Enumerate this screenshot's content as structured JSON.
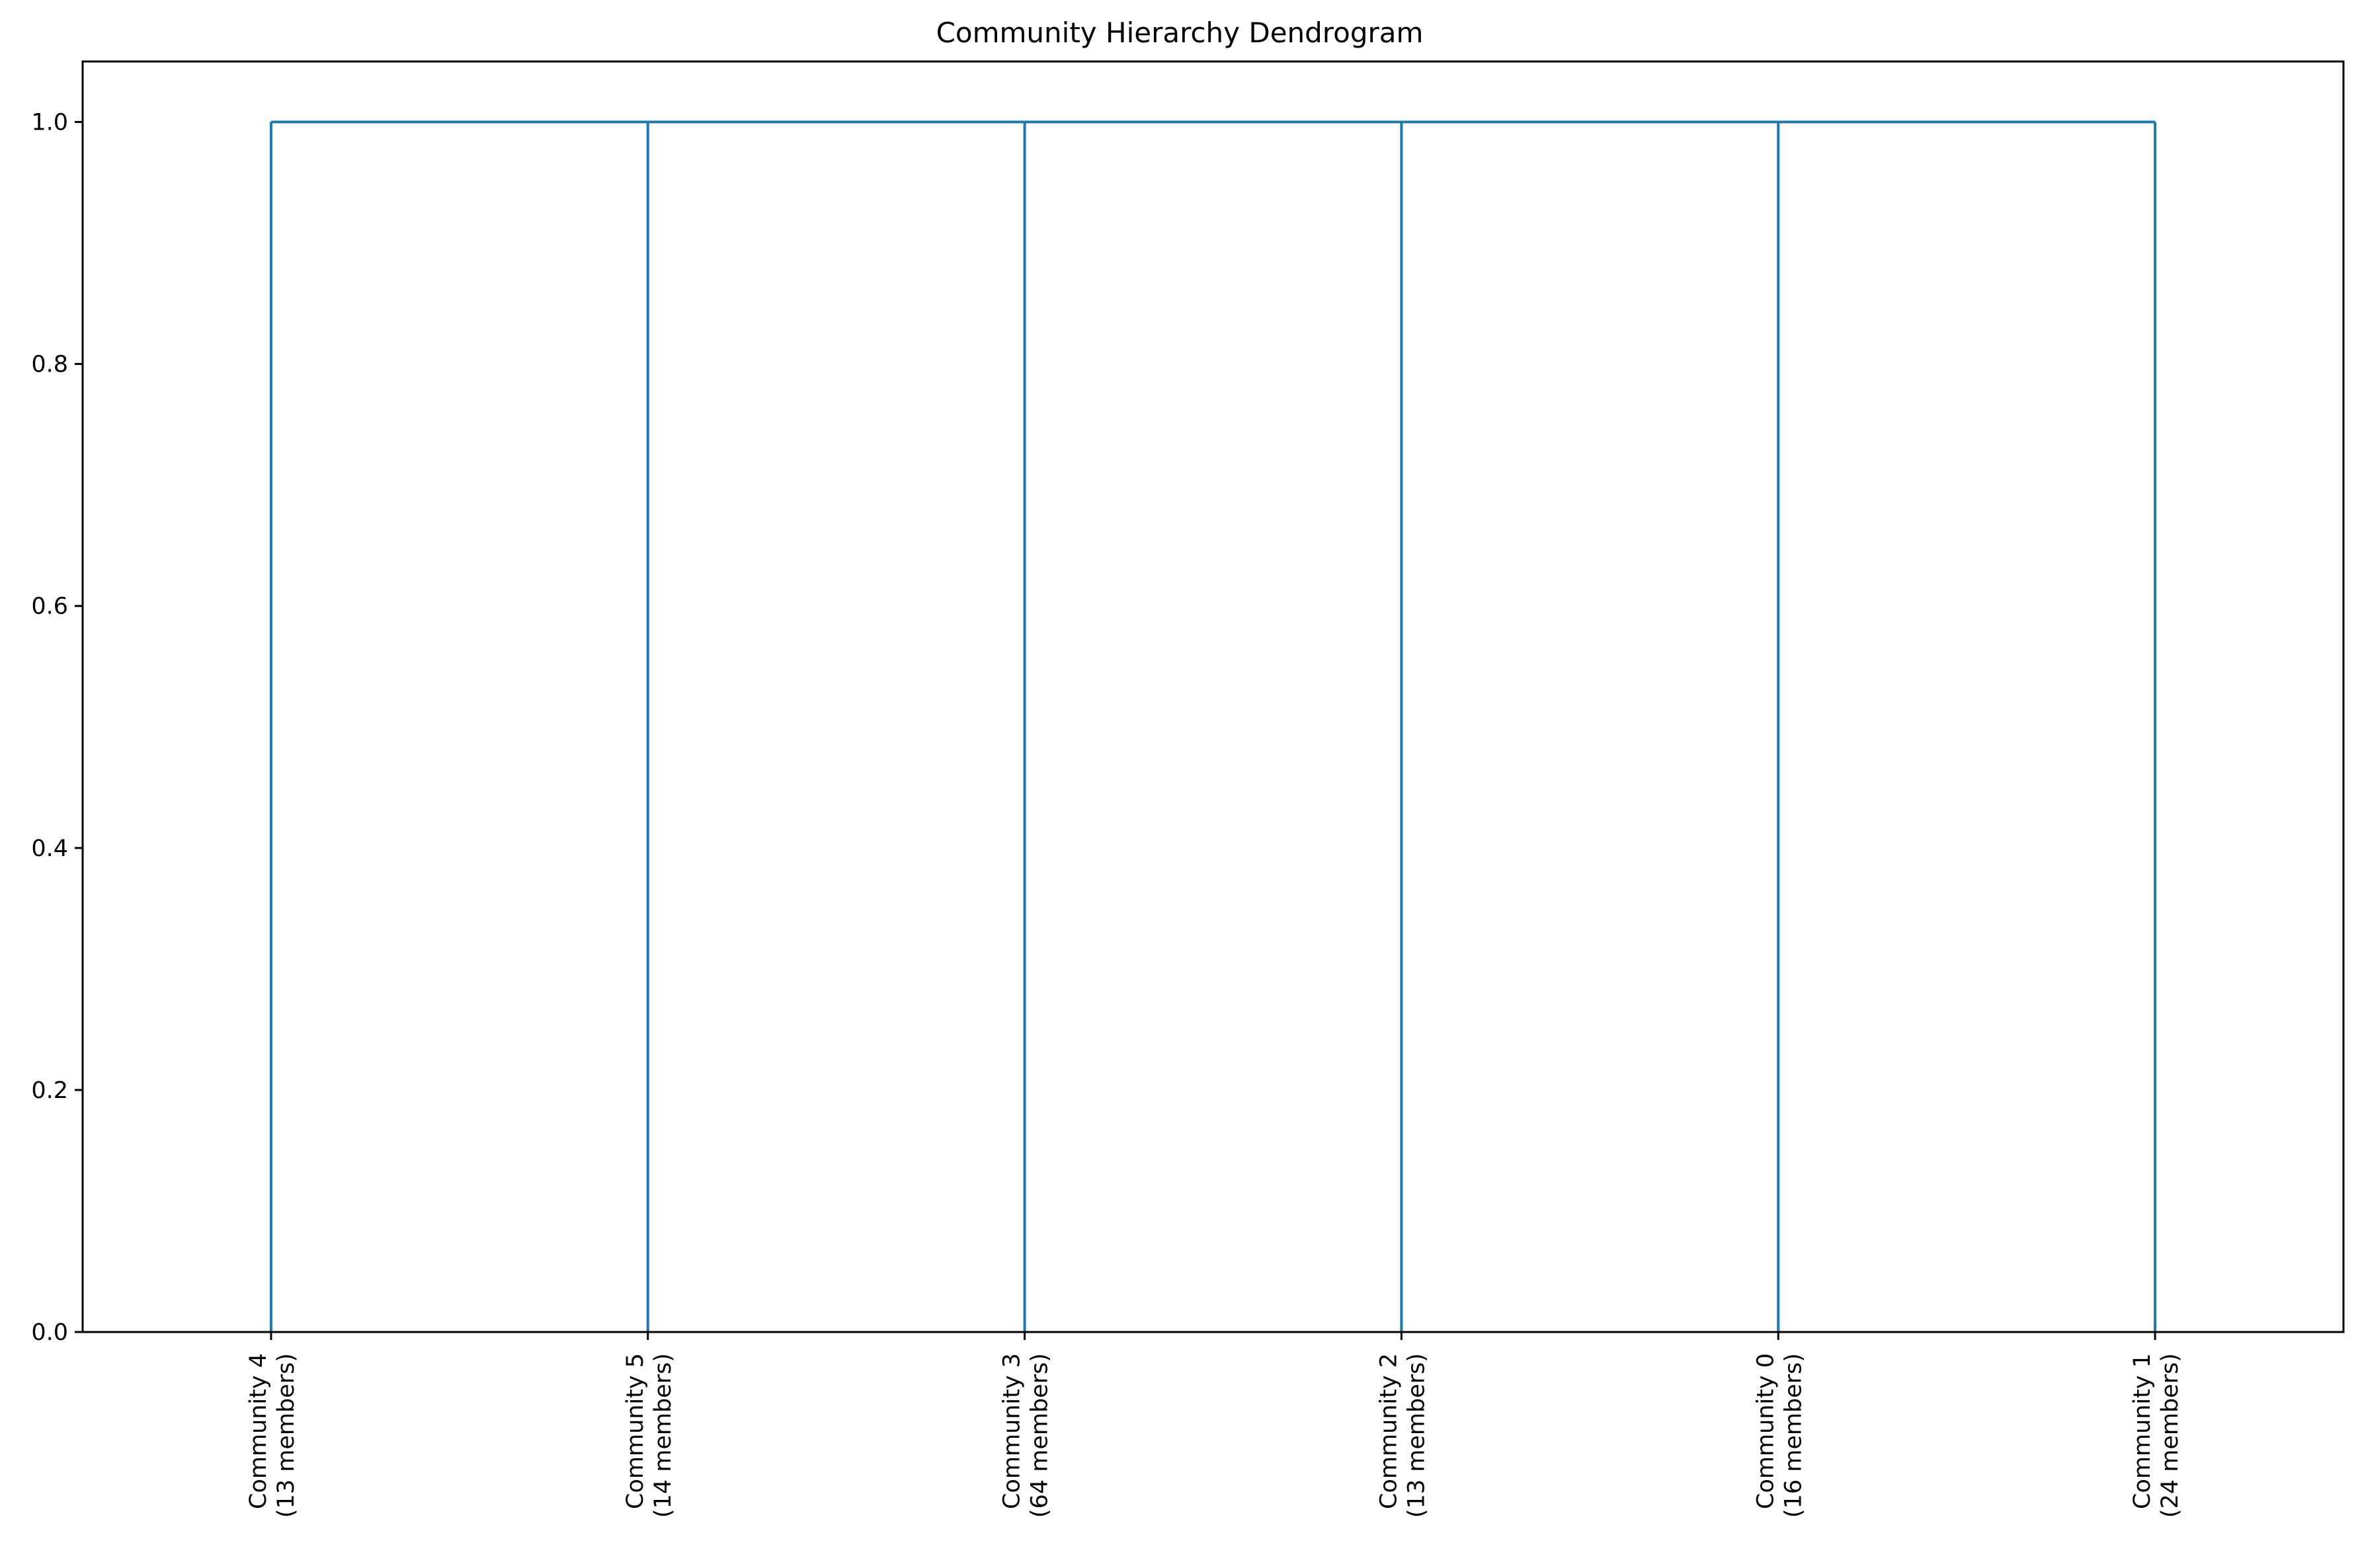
{
  "chart_data": {
    "type": "dendrogram",
    "title": "Community Hierarchy Dendrogram",
    "xlabel": "",
    "ylabel": "",
    "ylim": [
      0,
      1.05
    ],
    "yticks": [
      "0.0",
      "0.2",
      "0.4",
      "0.6",
      "0.8",
      "1.0"
    ],
    "grid": false,
    "leaves": [
      {
        "line1": "Community 4",
        "line2": "(13 members)"
      },
      {
        "line1": "Community 5",
        "line2": "(14 members)"
      },
      {
        "line1": "Community 3",
        "line2": "(64 members)"
      },
      {
        "line1": "Community 2",
        "line2": "(13 members)"
      },
      {
        "line1": "Community 0",
        "line2": "(16 members)"
      },
      {
        "line1": "Community 1",
        "line2": "(24 members)"
      }
    ],
    "merge_height": 1.0,
    "line_color": "#1f77b4"
  }
}
